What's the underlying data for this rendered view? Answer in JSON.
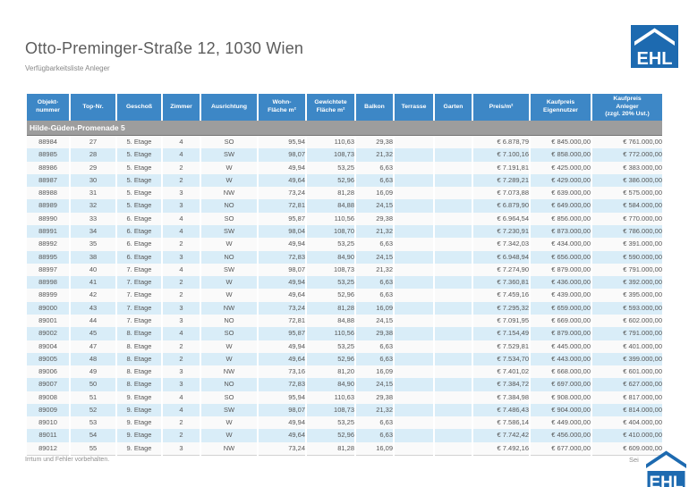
{
  "page": {
    "title": "Otto-Preminger-Straße 12, 1030 Wien",
    "subtitle": "Verfügbarkeitsliste Anleger"
  },
  "logo": {
    "text": "EHL",
    "brand_blue": "#1d6ab0"
  },
  "table": {
    "header_blue": "#3d87c6",
    "row_alt_blue": "#d9edf8",
    "section_gray": "#9d9d9d",
    "section_header": "Hilde-Güden-Promenade 5",
    "column_keys": [
      "objektnummer",
      "top_nr",
      "geschoss",
      "zimmer",
      "ausrichtung",
      "wohnflaeche",
      "gewichtete_flaeche",
      "balkon",
      "terrasse",
      "garten",
      "preis_pro_m2",
      "kaufpreis_eigennutzer",
      "kaufpreis_anleger"
    ],
    "columns": [
      "Objekt-\nnummer",
      "Top-Nr.",
      "Geschoß",
      "Zimmer",
      "Ausrichtung",
      "Wohn-\nFläche m²",
      "Gewichtete\nFläche m²",
      "Balkon",
      "Terrasse",
      "Garten",
      "Preis/m²",
      "Kaufpreis\nEigennutzer",
      "Kaufpreis\nAnleger\n(zzgl. 20% Ust.)"
    ],
    "rows": [
      [
        "88984",
        "27",
        "5. Etage",
        "4",
        "SO",
        "95,94",
        "110,63",
        "29,38",
        "",
        "",
        "€ 6.878,79",
        "€ 845.000,00",
        "€ 761.000,00"
      ],
      [
        "88985",
        "28",
        "5. Etage",
        "4",
        "SW",
        "98,07",
        "108,73",
        "21,32",
        "",
        "",
        "€ 7.100,16",
        "€ 858.000,00",
        "€ 772.000,00"
      ],
      [
        "88986",
        "29",
        "5. Etage",
        "2",
        "W",
        "49,94",
        "53,25",
        "6,63",
        "",
        "",
        "€ 7.191,81",
        "€ 425.000,00",
        "€ 383.000,00"
      ],
      [
        "88987",
        "30",
        "5. Etage",
        "2",
        "W",
        "49,64",
        "52,96",
        "6,63",
        "",
        "",
        "€ 7.289,21",
        "€ 429.000,00",
        "€ 386.000,00"
      ],
      [
        "88988",
        "31",
        "5. Etage",
        "3",
        "NW",
        "73,24",
        "81,28",
        "16,09",
        "",
        "",
        "€ 7.073,88",
        "€ 639.000,00",
        "€ 575.000,00"
      ],
      [
        "88989",
        "32",
        "5. Etage",
        "3",
        "NO",
        "72,81",
        "84,88",
        "24,15",
        "",
        "",
        "€ 6.879,90",
        "€ 649.000,00",
        "€ 584.000,00"
      ],
      [
        "88990",
        "33",
        "6. Etage",
        "4",
        "SO",
        "95,87",
        "110,56",
        "29,38",
        "",
        "",
        "€ 6.964,54",
        "€ 856.000,00",
        "€ 770.000,00"
      ],
      [
        "88991",
        "34",
        "6. Etage",
        "4",
        "SW",
        "98,04",
        "108,70",
        "21,32",
        "",
        "",
        "€ 7.230,91",
        "€ 873.000,00",
        "€ 786.000,00"
      ],
      [
        "88992",
        "35",
        "6. Etage",
        "2",
        "W",
        "49,94",
        "53,25",
        "6,63",
        "",
        "",
        "€ 7.342,03",
        "€ 434.000,00",
        "€ 391.000,00"
      ],
      [
        "88995",
        "38",
        "6. Etage",
        "3",
        "NO",
        "72,83",
        "84,90",
        "24,15",
        "",
        "",
        "€ 6.948,94",
        "€ 656.000,00",
        "€ 590.000,00"
      ],
      [
        "88997",
        "40",
        "7. Etage",
        "4",
        "SW",
        "98,07",
        "108,73",
        "21,32",
        "",
        "",
        "€ 7.274,90",
        "€ 879.000,00",
        "€ 791.000,00"
      ],
      [
        "88998",
        "41",
        "7. Etage",
        "2",
        "W",
        "49,94",
        "53,25",
        "6,63",
        "",
        "",
        "€ 7.360,81",
        "€ 436.000,00",
        "€ 392.000,00"
      ],
      [
        "88999",
        "42",
        "7. Etage",
        "2",
        "W",
        "49,64",
        "52,96",
        "6,63",
        "",
        "",
        "€ 7.459,16",
        "€ 439.000,00",
        "€ 395.000,00"
      ],
      [
        "89000",
        "43",
        "7. Etage",
        "3",
        "NW",
        "73,24",
        "81,28",
        "16,09",
        "",
        "",
        "€ 7.295,32",
        "€ 659.000,00",
        "€ 593.000,00"
      ],
      [
        "89001",
        "44",
        "7. Etage",
        "3",
        "NO",
        "72,81",
        "84,88",
        "24,15",
        "",
        "",
        "€ 7.091,95",
        "€ 669.000,00",
        "€ 602.000,00"
      ],
      [
        "89002",
        "45",
        "8. Etage",
        "4",
        "SO",
        "95,87",
        "110,56",
        "29,38",
        "",
        "",
        "€ 7.154,49",
        "€ 879.000,00",
        "€ 791.000,00"
      ],
      [
        "89004",
        "47",
        "8. Etage",
        "2",
        "W",
        "49,94",
        "53,25",
        "6,63",
        "",
        "",
        "€ 7.529,81",
        "€ 445.000,00",
        "€ 401.000,00"
      ],
      [
        "89005",
        "48",
        "8. Etage",
        "2",
        "W",
        "49,64",
        "52,96",
        "6,63",
        "",
        "",
        "€ 7.534,70",
        "€ 443.000,00",
        "€ 399.000,00"
      ],
      [
        "89006",
        "49",
        "8. Etage",
        "3",
        "NW",
        "73,16",
        "81,20",
        "16,09",
        "",
        "",
        "€ 7.401,02",
        "€ 668.000,00",
        "€ 601.000,00"
      ],
      [
        "89007",
        "50",
        "8. Etage",
        "3",
        "NO",
        "72,83",
        "84,90",
        "24,15",
        "",
        "",
        "€ 7.384,72",
        "€ 697.000,00",
        "€ 627.000,00"
      ],
      [
        "89008",
        "51",
        "9. Etage",
        "4",
        "SO",
        "95,94",
        "110,63",
        "29,38",
        "",
        "",
        "€ 7.384,98",
        "€ 908.000,00",
        "€ 817.000,00"
      ],
      [
        "89009",
        "52",
        "9. Etage",
        "4",
        "SW",
        "98,07",
        "108,73",
        "21,32",
        "",
        "",
        "€ 7.486,43",
        "€ 904.000,00",
        "€ 814.000,00"
      ],
      [
        "89010",
        "53",
        "9. Etage",
        "2",
        "W",
        "49,94",
        "53,25",
        "6,63",
        "",
        "",
        "€ 7.586,14",
        "€ 449.000,00",
        "€ 404.000,00"
      ],
      [
        "89011",
        "54",
        "9. Etage",
        "2",
        "W",
        "49,64",
        "52,96",
        "6,63",
        "",
        "",
        "€ 7.742,42",
        "€ 456.000,00",
        "€ 410.000,00"
      ],
      [
        "89012",
        "55",
        "9. Etage",
        "3",
        "NW",
        "73,24",
        "81,28",
        "16,09",
        "",
        "",
        "€ 7.492,16",
        "€ 677.000,00",
        "€ 609.000,00"
      ]
    ]
  },
  "footer": {
    "disclaimer": "Irrtum und Fehler vorbehalten.",
    "page_label": "Sei"
  }
}
